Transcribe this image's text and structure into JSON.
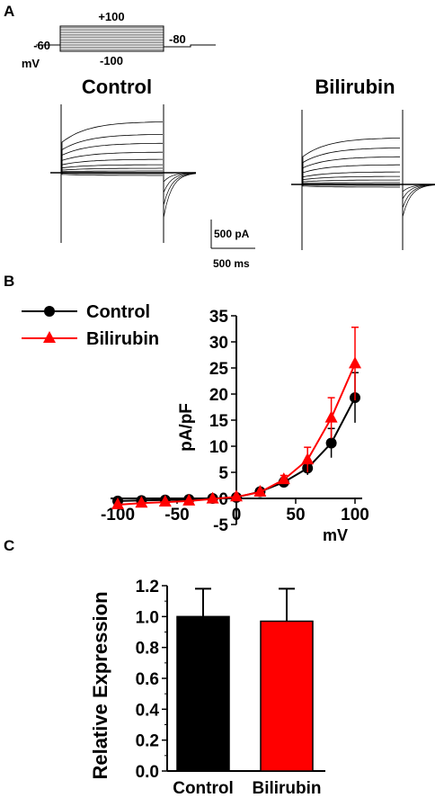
{
  "panel_a": {
    "label": "A",
    "protocol": {
      "v_start": "-60",
      "v_unit": "mV",
      "v_top": "+100",
      "v_bottom": "-100",
      "v_tail": "-80"
    },
    "control_title": "Control",
    "bilirubin_title": "Bilirubin",
    "scale_bar": {
      "current": "500 pA",
      "time": "500 ms"
    }
  },
  "chart_data": [
    {
      "panel": "B",
      "label": "B",
      "type": "line",
      "xlabel": "mV",
      "ylabel": "pA/pF",
      "xlim": [
        -110,
        110
      ],
      "ylim": [
        -5,
        35
      ],
      "xticks": [
        -100,
        -50,
        0,
        50,
        100
      ],
      "yticks": [
        -5,
        0,
        5,
        10,
        15,
        20,
        25,
        30,
        35
      ],
      "x": [
        -100,
        -80,
        -60,
        -40,
        -20,
        0,
        20,
        40,
        60,
        80,
        100
      ],
      "series": [
        {
          "name": "Control",
          "color": "#000000",
          "marker": "circle",
          "values": [
            -0.5,
            -0.4,
            -0.3,
            -0.2,
            0.0,
            0.2,
            1.3,
            3.1,
            5.8,
            10.6,
            19.3
          ],
          "errors": [
            0.3,
            0.3,
            0.3,
            0.3,
            0.3,
            0.3,
            0.5,
            0.8,
            1.3,
            2.8,
            4.8
          ]
        },
        {
          "name": "Bilirubin",
          "color": "#ff0000",
          "marker": "triangle",
          "values": [
            -1.2,
            -0.9,
            -0.7,
            -0.5,
            -0.1,
            0.3,
            1.2,
            3.6,
            7.4,
            15.4,
            25.8
          ],
          "errors": [
            0.3,
            0.3,
            0.3,
            0.3,
            0.3,
            0.3,
            0.5,
            0.8,
            2.4,
            3.9,
            7.0
          ]
        }
      ],
      "legend": "top-left"
    },
    {
      "panel": "C",
      "label": "C",
      "type": "bar",
      "categories": [
        "Control",
        "Bilirubin"
      ],
      "values": [
        1.0,
        0.97
      ],
      "errors": [
        0.18,
        0.21
      ],
      "colors": [
        "#000000",
        "#ff0000"
      ],
      "ylabel": "Relative Expression",
      "ylim": [
        0.0,
        1.2
      ],
      "yticks": [
        "0.0",
        "0.2",
        "0.4",
        "0.6",
        "0.8",
        "1.0",
        "1.2"
      ]
    }
  ]
}
